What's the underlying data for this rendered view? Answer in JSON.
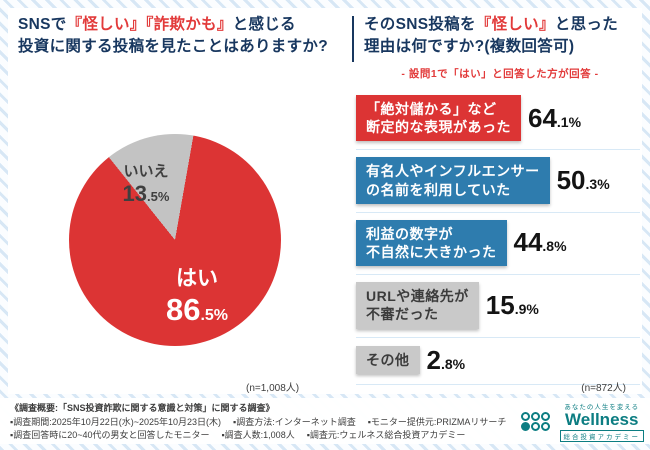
{
  "q1": {
    "title_seg1": "SNSで",
    "title_seg2": "『怪しい』『詐欺かも』",
    "title_seg3": "と感じる",
    "title_line2": "投資に関する投稿を見たことはありますか?",
    "n": "(n=1,008人)"
  },
  "q2": {
    "title_seg1": "そのSNS投稿を",
    "title_seg2": "『怪しい』",
    "title_seg3": "と思った",
    "title_line2": "理由は何ですか?(複数回答可)",
    "note": "- 設問1で「はい」と回答した方が回答 -",
    "n": "(n=872人)"
  },
  "chart_data": [
    {
      "type": "pie",
      "title": "SNSで『怪しい』『詐欺かも』と感じる投資に関する投稿を見たことはありますか?",
      "n": "n=1,008人",
      "legend_position": "none",
      "slices": [
        {
          "label": "はい",
          "value": 86.5,
          "display_int": "86",
          "display_rest": ".5%",
          "color": "#dc3434",
          "text_color": "#ffffff"
        },
        {
          "label": "いいえ",
          "value": 13.5,
          "display_int": "13",
          "display_rest": ".5%",
          "color": "#c3c3c3",
          "text_color": "#3f3f3f"
        }
      ]
    },
    {
      "type": "bar",
      "orientation": "horizontal",
      "title": "そのSNS投稿を『怪しい』と思った理由は何ですか?(複数回答可)",
      "note": "設問1で「はい」と回答した方が回答",
      "n": "n=872人",
      "xlim": [
        0,
        100
      ],
      "items": [
        {
          "label": "「絶対儲かる」など断定的な表現があった",
          "line1": "「絶対儲かる」など",
          "line2": "断定的な表現があった",
          "value": 64.1,
          "display_int": "64",
          "display_rest": ".1%",
          "color": "#dc3434",
          "text_color": "#ffffff"
        },
        {
          "label": "有名人やインフルエンサーの名前を利用していた",
          "line1": "有名人やインフルエンサー",
          "line2": "の名前を利用していた",
          "value": 50.3,
          "display_int": "50",
          "display_rest": ".3%",
          "color": "#2e7cae",
          "text_color": "#ffffff"
        },
        {
          "label": "利益の数字が不自然に大きかった",
          "line1": "利益の数字が",
          "line2": "不自然に大きかった",
          "value": 44.8,
          "display_int": "44",
          "display_rest": ".8%",
          "color": "#2e7cae",
          "text_color": "#ffffff"
        },
        {
          "label": "URLや連絡先が不審だった",
          "line1": "URLや連絡先が",
          "line2": "不審だった",
          "value": 15.9,
          "display_int": "15",
          "display_rest": ".9%",
          "color": "#c9c9c9",
          "text_color": "#3c3c3c"
        },
        {
          "label": "その他",
          "line1": "その他",
          "line2": "",
          "value": 2.8,
          "display_int": "2",
          "display_rest": ".8%",
          "color": "#c9c9c9",
          "text_color": "#3c3c3c"
        }
      ]
    }
  ],
  "footer": {
    "line1": "《調査概要:「SNS投資詐欺に関する意識と対策」に関する調査》",
    "line2_items": [
      "▪調査期間:2025年10月22日(水)~2025年10月23日(木)",
      "▪調査方法:インターネット調査",
      "▪モニター提供元:PRIZMAリサーチ"
    ],
    "line3_items": [
      "▪調査回答時に20~40代の男女と回答したモニター",
      "▪調査人数:1,008人",
      "▪調査元:ウェルネス総合投資アカデミー"
    ],
    "logo": {
      "tagline": "あなたの人生を変える",
      "brand": "Wellness",
      "sub": "総合投資アカデミー"
    }
  }
}
